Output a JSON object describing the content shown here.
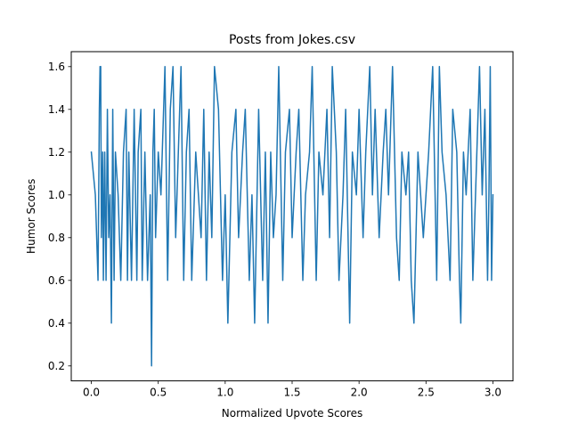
{
  "chart_data": {
    "type": "line",
    "title": "Posts from Jokes.csv",
    "xlabel": "Normalized Upvote Scores",
    "ylabel": "Humor Scores",
    "xlim": [
      -0.15,
      3.15
    ],
    "ylim": [
      0.13,
      1.67
    ],
    "xticks": [
      0.0,
      0.5,
      1.0,
      1.5,
      2.0,
      2.5,
      3.0
    ],
    "xtick_labels": [
      "0.0",
      "0.5",
      "1.0",
      "1.5",
      "2.0",
      "2.5",
      "3.0"
    ],
    "yticks": [
      0.2,
      0.4,
      0.6,
      0.8,
      1.0,
      1.2,
      1.4,
      1.6
    ],
    "ytick_labels": [
      "0.2",
      "0.4",
      "0.6",
      "0.8",
      "1.0",
      "1.2",
      "1.4",
      "1.6"
    ],
    "grid": false,
    "series": [
      {
        "name": "Humor Scores",
        "color": "#1f77b4",
        "x": [
          0.0,
          0.03,
          0.05,
          0.06,
          0.065,
          0.07,
          0.075,
          0.08,
          0.085,
          0.09,
          0.1,
          0.11,
          0.12,
          0.13,
          0.14,
          0.15,
          0.16,
          0.17,
          0.18,
          0.2,
          0.22,
          0.24,
          0.26,
          0.27,
          0.28,
          0.3,
          0.32,
          0.34,
          0.35,
          0.37,
          0.38,
          0.4,
          0.42,
          0.44,
          0.45,
          0.46,
          0.47,
          0.48,
          0.5,
          0.52,
          0.55,
          0.57,
          0.59,
          0.61,
          0.63,
          0.65,
          0.67,
          0.69,
          0.71,
          0.73,
          0.75,
          0.78,
          0.8,
          0.82,
          0.84,
          0.86,
          0.88,
          0.9,
          0.92,
          0.95,
          0.98,
          1.0,
          1.02,
          1.05,
          1.08,
          1.1,
          1.13,
          1.15,
          1.18,
          1.2,
          1.22,
          1.25,
          1.28,
          1.3,
          1.32,
          1.34,
          1.36,
          1.38,
          1.4,
          1.43,
          1.45,
          1.48,
          1.5,
          1.53,
          1.55,
          1.58,
          1.6,
          1.63,
          1.65,
          1.68,
          1.7,
          1.73,
          1.76,
          1.78,
          1.8,
          1.83,
          1.85,
          1.88,
          1.9,
          1.93,
          1.95,
          1.98,
          2.0,
          2.03,
          2.05,
          2.08,
          2.1,
          2.12,
          2.15,
          2.18,
          2.2,
          2.22,
          2.25,
          2.28,
          2.3,
          2.32,
          2.35,
          2.37,
          2.39,
          2.41,
          2.44,
          2.46,
          2.48,
          2.5,
          2.52,
          2.55,
          2.58,
          2.6,
          2.62,
          2.65,
          2.68,
          2.7,
          2.73,
          2.75,
          2.76,
          2.78,
          2.8,
          2.83,
          2.85,
          2.88,
          2.9,
          2.92,
          2.94,
          2.96,
          2.97,
          2.98,
          2.99,
          3.0
        ],
        "y": [
          1.2,
          1.0,
          0.6,
          1.4,
          1.6,
          1.6,
          0.8,
          1.0,
          1.2,
          0.6,
          1.2,
          0.6,
          1.4,
          0.8,
          1.0,
          0.4,
          1.4,
          0.6,
          1.2,
          1.0,
          0.6,
          1.2,
          1.4,
          0.6,
          1.2,
          0.6,
          1.4,
          0.6,
          1.2,
          1.4,
          0.6,
          1.2,
          0.6,
          1.0,
          0.2,
          1.2,
          1.4,
          0.8,
          1.2,
          1.0,
          1.6,
          0.6,
          1.4,
          1.6,
          0.8,
          1.2,
          1.6,
          0.6,
          1.2,
          1.4,
          0.6,
          1.2,
          1.0,
          0.8,
          1.4,
          0.6,
          1.2,
          0.8,
          1.6,
          1.4,
          0.6,
          1.0,
          0.4,
          1.2,
          1.4,
          0.8,
          1.2,
          1.4,
          0.6,
          1.0,
          0.4,
          1.4,
          0.6,
          1.2,
          0.4,
          1.2,
          0.8,
          1.0,
          1.6,
          0.6,
          1.2,
          1.4,
          0.8,
          1.2,
          1.4,
          0.6,
          1.0,
          1.2,
          1.6,
          0.6,
          1.2,
          1.0,
          1.4,
          0.8,
          1.6,
          1.2,
          0.6,
          1.0,
          1.4,
          0.4,
          1.2,
          1.0,
          1.4,
          0.8,
          1.2,
          1.6,
          1.0,
          1.4,
          0.8,
          1.2,
          1.4,
          1.0,
          1.6,
          0.8,
          0.6,
          1.2,
          1.0,
          1.2,
          0.6,
          0.4,
          1.2,
          1.0,
          0.8,
          1.0,
          1.2,
          1.6,
          0.6,
          1.6,
          1.2,
          1.0,
          0.6,
          1.4,
          1.2,
          0.6,
          0.4,
          1.2,
          1.0,
          1.4,
          0.6,
          1.2,
          1.6,
          1.0,
          1.4,
          0.6,
          1.0,
          1.6,
          0.6,
          1.0
        ]
      }
    ]
  }
}
